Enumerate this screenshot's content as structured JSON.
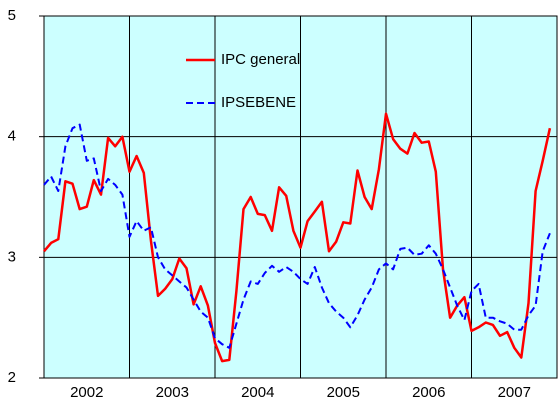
{
  "chart_data": {
    "type": "line",
    "x": [
      2002,
      2002.083,
      2002.167,
      2002.25,
      2002.333,
      2002.417,
      2002.5,
      2002.583,
      2002.667,
      2002.75,
      2002.833,
      2002.917,
      2003,
      2003.083,
      2003.167,
      2003.25,
      2003.333,
      2003.417,
      2003.5,
      2003.583,
      2003.667,
      2003.75,
      2003.833,
      2003.917,
      2004,
      2004.083,
      2004.167,
      2004.25,
      2004.333,
      2004.417,
      2004.5,
      2004.583,
      2004.667,
      2004.75,
      2004.833,
      2004.917,
      2005,
      2005.083,
      2005.167,
      2005.25,
      2005.333,
      2005.417,
      2005.5,
      2005.583,
      2005.667,
      2005.75,
      2005.833,
      2005.917,
      2006,
      2006.083,
      2006.167,
      2006.25,
      2006.333,
      2006.417,
      2006.5,
      2006.583,
      2006.667,
      2006.75,
      2006.833,
      2006.917,
      2007,
      2007.083,
      2007.167,
      2007.25,
      2007.333,
      2007.417,
      2007.5,
      2007.583,
      2007.667,
      2007.75,
      2007.833,
      2007.917
    ],
    "series": [
      {
        "name": "IPC general",
        "color": "#ff0000",
        "dash": false,
        "values": [
          3.05,
          3.12,
          3.15,
          3.63,
          3.61,
          3.4,
          3.42,
          3.64,
          3.52,
          3.99,
          3.92,
          4.0,
          3.71,
          3.84,
          3.7,
          3.14,
          2.68,
          2.74,
          2.82,
          2.99,
          2.91,
          2.61,
          2.76,
          2.6,
          2.29,
          2.14,
          2.15,
          2.72,
          3.4,
          3.5,
          3.36,
          3.35,
          3.22,
          3.58,
          3.51,
          3.22,
          3.08,
          3.3,
          3.38,
          3.46,
          3.05,
          3.13,
          3.29,
          3.28,
          3.72,
          3.5,
          3.4,
          3.73,
          4.19,
          3.98,
          3.9,
          3.86,
          4.03,
          3.95,
          3.96,
          3.71,
          2.9,
          2.5,
          2.6,
          2.67,
          2.39,
          2.42,
          2.46,
          2.44,
          2.35,
          2.38,
          2.25,
          2.17,
          2.62,
          3.55,
          3.8,
          4.07
        ]
      },
      {
        "name": "IPSEBENE",
        "color": "#0000ff",
        "dash": true,
        "values": [
          3.6,
          3.67,
          3.55,
          3.92,
          4.07,
          4.1,
          3.8,
          3.82,
          3.55,
          3.65,
          3.6,
          3.52,
          3.17,
          3.3,
          3.22,
          3.25,
          3.0,
          2.9,
          2.85,
          2.8,
          2.75,
          2.65,
          2.55,
          2.5,
          2.33,
          2.28,
          2.25,
          2.45,
          2.65,
          2.8,
          2.78,
          2.87,
          2.93,
          2.88,
          2.92,
          2.88,
          2.82,
          2.78,
          2.92,
          2.75,
          2.62,
          2.55,
          2.5,
          2.42,
          2.52,
          2.65,
          2.75,
          2.9,
          2.95,
          2.9,
          3.07,
          3.08,
          3.02,
          3.03,
          3.1,
          3.03,
          2.9,
          2.75,
          2.6,
          2.48,
          2.72,
          2.78,
          2.5,
          2.5,
          2.47,
          2.45,
          2.4,
          2.4,
          2.52,
          2.6,
          3.05,
          3.2
        ]
      }
    ],
    "xlim": [
      2002,
      2008
    ],
    "xticks": [
      {
        "value": 2002.5,
        "label": "2002"
      },
      {
        "value": 2003.5,
        "label": "2003"
      },
      {
        "value": 2004.5,
        "label": "2004"
      },
      {
        "value": 2005.5,
        "label": "2005"
      },
      {
        "value": 2006.5,
        "label": "2006"
      },
      {
        "value": 2007.5,
        "label": "2007"
      }
    ],
    "xgridlines": [
      2003,
      2004,
      2005,
      2006,
      2007
    ],
    "ylim": [
      2,
      5
    ],
    "yticks": [
      2,
      3,
      4,
      5
    ],
    "grid": true,
    "background": "#ccffff"
  }
}
